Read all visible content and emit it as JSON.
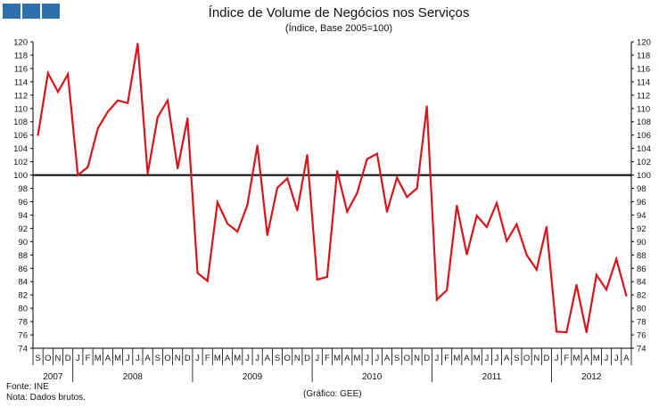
{
  "header": {
    "title": "Índice de Volume de Negócios nos Serviços",
    "subtitle": "(Índice, Base 2005=100)"
  },
  "footer": {
    "source": "Fonte: INE",
    "note": "Nota: Dados brutos.",
    "credit": "(Gráfico: GEE)"
  },
  "colors": {
    "logo": "#2e6fb0",
    "series": "#d9141b",
    "baseline": "#000000",
    "axis": "#000000"
  },
  "chart_data": {
    "type": "line",
    "title": "Índice de Volume de Negócios nos Serviços",
    "subtitle": "(Índice, Base 2005=100)",
    "ylim": [
      74,
      120
    ],
    "yticks": [
      74,
      76,
      78,
      80,
      82,
      84,
      86,
      88,
      90,
      92,
      94,
      96,
      98,
      100,
      102,
      104,
      106,
      108,
      110,
      112,
      114,
      116,
      118,
      120
    ],
    "reference_line": 100,
    "months": [
      "S",
      "O",
      "N",
      "D",
      "J",
      "F",
      "M",
      "A",
      "M",
      "J",
      "J",
      "A",
      "S",
      "O",
      "N",
      "D",
      "J",
      "F",
      "M",
      "A",
      "M",
      "J",
      "J",
      "A",
      "S",
      "O",
      "N",
      "D",
      "J",
      "F",
      "M",
      "A",
      "M",
      "J",
      "J",
      "A",
      "S",
      "O",
      "N",
      "D",
      "J",
      "F",
      "M",
      "A",
      "M",
      "J",
      "J",
      "A",
      "S",
      "O",
      "N",
      "D",
      "J",
      "F",
      "M",
      "A",
      "M",
      "J",
      "J",
      "A"
    ],
    "years": [
      {
        "label": "2007",
        "count": 4
      },
      {
        "label": "2008",
        "count": 12
      },
      {
        "label": "2009",
        "count": 12
      },
      {
        "label": "2010",
        "count": 12
      },
      {
        "label": "2011",
        "count": 12
      },
      {
        "label": "2012",
        "count": 8
      }
    ],
    "series": [
      {
        "name": "Índice de Volume de Negócios nos Serviços",
        "values": [
          106.0,
          115.3,
          112.5,
          115.1,
          100.0,
          101.2,
          107.0,
          109.5,
          111.2,
          110.8,
          119.7,
          100.2,
          108.7,
          111.2,
          101.0,
          108.5,
          85.3,
          84.1,
          95.9,
          92.7,
          91.5,
          95.5,
          104.4,
          91.0,
          98.1,
          99.5,
          94.7,
          103.0,
          84.3,
          84.7,
          100.6,
          94.5,
          97.3,
          102.4,
          103.2,
          94.5,
          99.6,
          96.7,
          98.0,
          110.3,
          81.3,
          82.7,
          95.4,
          88.1,
          93.9,
          92.2,
          95.8,
          90.1,
          92.6,
          88.0,
          85.8,
          92.2,
          76.5,
          76.4,
          83.5,
          76.4,
          85.0,
          82.8,
          87.4,
          81.9
        ]
      }
    ]
  }
}
